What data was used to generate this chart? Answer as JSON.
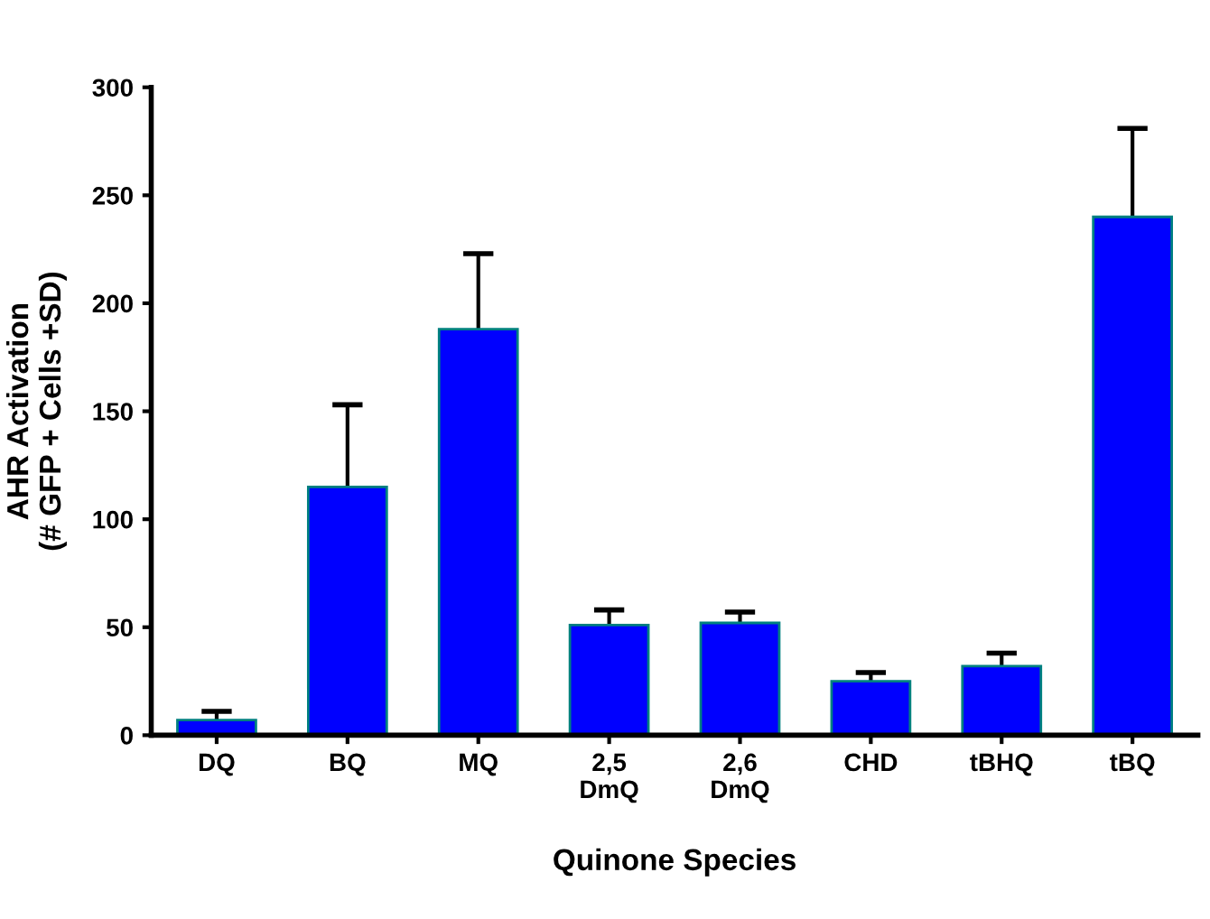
{
  "chart_data": {
    "type": "bar",
    "xlabel": "Quinone Species",
    "ylabel": "AHR Activation\n(# GFP + Cells +SD)",
    "categories": [
      "DQ",
      "BQ",
      "MQ",
      "2,5\nDmQ",
      "2,6\nDmQ",
      "CHD",
      "tBHQ",
      "tBQ"
    ],
    "values": [
      7,
      115,
      188,
      51,
      52,
      25,
      32,
      240
    ],
    "errors": [
      4,
      38,
      35,
      7,
      5,
      4,
      6,
      41
    ],
    "color": "#0000ff",
    "ylim": [
      0,
      300
    ],
    "yticks": [
      0,
      50,
      100,
      150,
      200,
      250,
      300
    ],
    "grid": false
  }
}
